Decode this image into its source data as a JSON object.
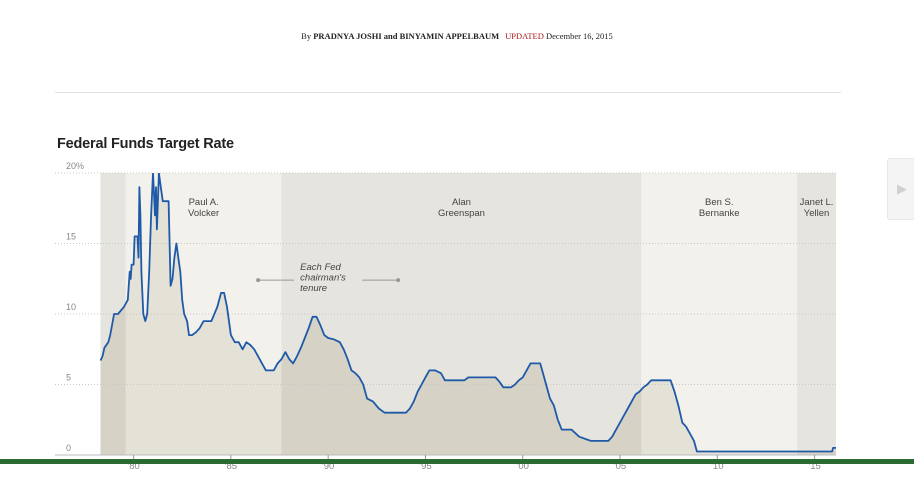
{
  "byline": {
    "prefix": "By",
    "names": "PRADNYA JOSHI and BINYAMIN APPELBAUM",
    "updated_label": "UPDATED",
    "date": "December 16, 2015"
  },
  "chart_data": {
    "type": "line",
    "title": "Federal Funds Target Rate",
    "xlabel": "",
    "ylabel": "",
    "xlim": [
      1977.4,
      2016.1
    ],
    "ylim": [
      0,
      20
    ],
    "grid": true,
    "y_ticks": [
      0,
      5,
      10,
      15,
      20
    ],
    "y_tick_labels": [
      "0",
      "5",
      "10",
      "15",
      "20%"
    ],
    "x_ticks": [
      1980,
      1985,
      1990,
      1995,
      2000,
      2005,
      2010,
      2015
    ],
    "x_tick_labels": [
      "'80",
      "'85",
      "'90",
      "'95",
      "'00",
      "'05",
      "'10",
      "'15"
    ],
    "series": [
      {
        "name": "",
        "color": "#1f5aa8",
        "fill": true,
        "points": [
          [
            1978.3,
            6.7
          ],
          [
            1978.4,
            7.0
          ],
          [
            1978.5,
            7.6
          ],
          [
            1978.7,
            8.0
          ],
          [
            1978.8,
            8.5
          ],
          [
            1979.0,
            10.0
          ],
          [
            1979.2,
            10.0
          ],
          [
            1979.5,
            10.5
          ],
          [
            1979.7,
            11.0
          ],
          [
            1979.8,
            13.0
          ],
          [
            1979.85,
            12.5
          ],
          [
            1979.9,
            13.5
          ],
          [
            1980.0,
            13.5
          ],
          [
            1980.05,
            15.5
          ],
          [
            1980.2,
            15.5
          ],
          [
            1980.25,
            14.0
          ],
          [
            1980.3,
            19.0
          ],
          [
            1980.35,
            17.0
          ],
          [
            1980.4,
            13.0
          ],
          [
            1980.5,
            10.0
          ],
          [
            1980.6,
            9.5
          ],
          [
            1980.7,
            10.0
          ],
          [
            1980.8,
            13.0
          ],
          [
            1980.9,
            17.0
          ],
          [
            1981.0,
            20.0
          ],
          [
            1981.1,
            17.0
          ],
          [
            1981.15,
            19.0
          ],
          [
            1981.2,
            16.0
          ],
          [
            1981.3,
            20.0
          ],
          [
            1981.4,
            19.0
          ],
          [
            1981.5,
            18.0
          ],
          [
            1981.6,
            18.0
          ],
          [
            1981.8,
            18.0
          ],
          [
            1981.9,
            12.0
          ],
          [
            1982.0,
            12.5
          ],
          [
            1982.1,
            14.0
          ],
          [
            1982.2,
            15.0
          ],
          [
            1982.3,
            14.0
          ],
          [
            1982.4,
            13.0
          ],
          [
            1982.5,
            11.0
          ],
          [
            1982.6,
            10.0
          ],
          [
            1982.75,
            9.5
          ],
          [
            1982.85,
            8.5
          ],
          [
            1983.0,
            8.5
          ],
          [
            1983.2,
            8.7
          ],
          [
            1983.4,
            9.0
          ],
          [
            1983.6,
            9.5
          ],
          [
            1983.8,
            9.5
          ],
          [
            1984.0,
            9.5
          ],
          [
            1984.3,
            10.5
          ],
          [
            1984.5,
            11.5
          ],
          [
            1984.65,
            11.5
          ],
          [
            1984.8,
            10.5
          ],
          [
            1985.0,
            8.5
          ],
          [
            1985.2,
            8.0
          ],
          [
            1985.4,
            8.0
          ],
          [
            1985.6,
            7.5
          ],
          [
            1985.8,
            8.0
          ],
          [
            1986.0,
            7.8
          ],
          [
            1986.2,
            7.5
          ],
          [
            1986.4,
            7.0
          ],
          [
            1986.6,
            6.5
          ],
          [
            1986.8,
            6.0
          ],
          [
            1987.0,
            6.0
          ],
          [
            1987.2,
            6.0
          ],
          [
            1987.4,
            6.5
          ],
          [
            1987.6,
            6.8
          ],
          [
            1987.8,
            7.3
          ],
          [
            1988.0,
            6.8
          ],
          [
            1988.2,
            6.5
          ],
          [
            1988.4,
            7.0
          ],
          [
            1988.6,
            7.6
          ],
          [
            1988.8,
            8.3
          ],
          [
            1989.0,
            9.0
          ],
          [
            1989.2,
            9.8
          ],
          [
            1989.4,
            9.8
          ],
          [
            1989.6,
            9.2
          ],
          [
            1989.8,
            8.5
          ],
          [
            1990.0,
            8.3
          ],
          [
            1990.3,
            8.2
          ],
          [
            1990.6,
            8.0
          ],
          [
            1990.8,
            7.5
          ],
          [
            1991.0,
            6.8
          ],
          [
            1991.2,
            6.0
          ],
          [
            1991.4,
            5.8
          ],
          [
            1991.6,
            5.5
          ],
          [
            1991.8,
            5.0
          ],
          [
            1992.0,
            4.0
          ],
          [
            1992.3,
            3.8
          ],
          [
            1992.6,
            3.3
          ],
          [
            1992.9,
            3.0
          ],
          [
            1993.5,
            3.0
          ],
          [
            1994.0,
            3.0
          ],
          [
            1994.2,
            3.3
          ],
          [
            1994.4,
            3.8
          ],
          [
            1994.6,
            4.5
          ],
          [
            1994.8,
            5.0
          ],
          [
            1995.0,
            5.5
          ],
          [
            1995.2,
            6.0
          ],
          [
            1995.5,
            6.0
          ],
          [
            1995.8,
            5.8
          ],
          [
            1996.0,
            5.3
          ],
          [
            1996.5,
            5.3
          ],
          [
            1997.0,
            5.3
          ],
          [
            1997.2,
            5.5
          ],
          [
            1998.0,
            5.5
          ],
          [
            1998.6,
            5.5
          ],
          [
            1998.8,
            5.2
          ],
          [
            1999.0,
            4.8
          ],
          [
            1999.4,
            4.8
          ],
          [
            1999.6,
            5.0
          ],
          [
            1999.8,
            5.3
          ],
          [
            2000.0,
            5.5
          ],
          [
            2000.2,
            6.0
          ],
          [
            2000.4,
            6.5
          ],
          [
            2000.9,
            6.5
          ],
          [
            2001.0,
            6.0
          ],
          [
            2001.2,
            5.0
          ],
          [
            2001.4,
            4.0
          ],
          [
            2001.6,
            3.5
          ],
          [
            2001.8,
            2.5
          ],
          [
            2002.0,
            1.8
          ],
          [
            2002.5,
            1.8
          ],
          [
            2002.9,
            1.3
          ],
          [
            2003.5,
            1.0
          ],
          [
            2004.0,
            1.0
          ],
          [
            2004.4,
            1.0
          ],
          [
            2004.6,
            1.3
          ],
          [
            2004.8,
            1.8
          ],
          [
            2005.0,
            2.3
          ],
          [
            2005.2,
            2.8
          ],
          [
            2005.4,
            3.3
          ],
          [
            2005.6,
            3.8
          ],
          [
            2005.8,
            4.3
          ],
          [
            2006.0,
            4.5
          ],
          [
            2006.2,
            4.8
          ],
          [
            2006.4,
            5.0
          ],
          [
            2006.6,
            5.3
          ],
          [
            2007.0,
            5.3
          ],
          [
            2007.6,
            5.3
          ],
          [
            2007.8,
            4.5
          ],
          [
            2008.0,
            3.5
          ],
          [
            2008.2,
            2.3
          ],
          [
            2008.4,
            2.0
          ],
          [
            2008.8,
            1.0
          ],
          [
            2008.95,
            0.25
          ],
          [
            2009.0,
            0.25
          ],
          [
            2015.9,
            0.25
          ],
          [
            2015.95,
            0.5
          ],
          [
            2016.1,
            0.5
          ]
        ]
      }
    ],
    "tenures": [
      {
        "name": "",
        "start": 1978.3,
        "end": 1979.6,
        "shade": "dark"
      },
      {
        "name": "Paul A.\nVolcker",
        "start": 1979.6,
        "end": 1987.6,
        "shade": "light"
      },
      {
        "name": "Alan\nGreenspan",
        "start": 1987.6,
        "end": 2006.1,
        "shade": "dark"
      },
      {
        "name": "Ben S.\nBernanke",
        "start": 2006.1,
        "end": 2014.1,
        "shade": "light"
      },
      {
        "name": "Janet L.\nYellen",
        "start": 2014.1,
        "end": 2016.1,
        "shade": "dark"
      }
    ],
    "annotations": [
      {
        "text": "Each Fed\nchairman's\ntenure",
        "x_from": 1986.4,
        "x_to": 1993.6,
        "y": 12.4
      }
    ],
    "colors": {
      "line": "#1f5aa8",
      "dark_band": "#e6e4de",
      "light_band": "#f2f1ec",
      "under_line_dark": "#d6d2c5",
      "under_line_light": "#e4e1d7",
      "grid": "#c8c8c8",
      "annotation": "#999999"
    }
  }
}
